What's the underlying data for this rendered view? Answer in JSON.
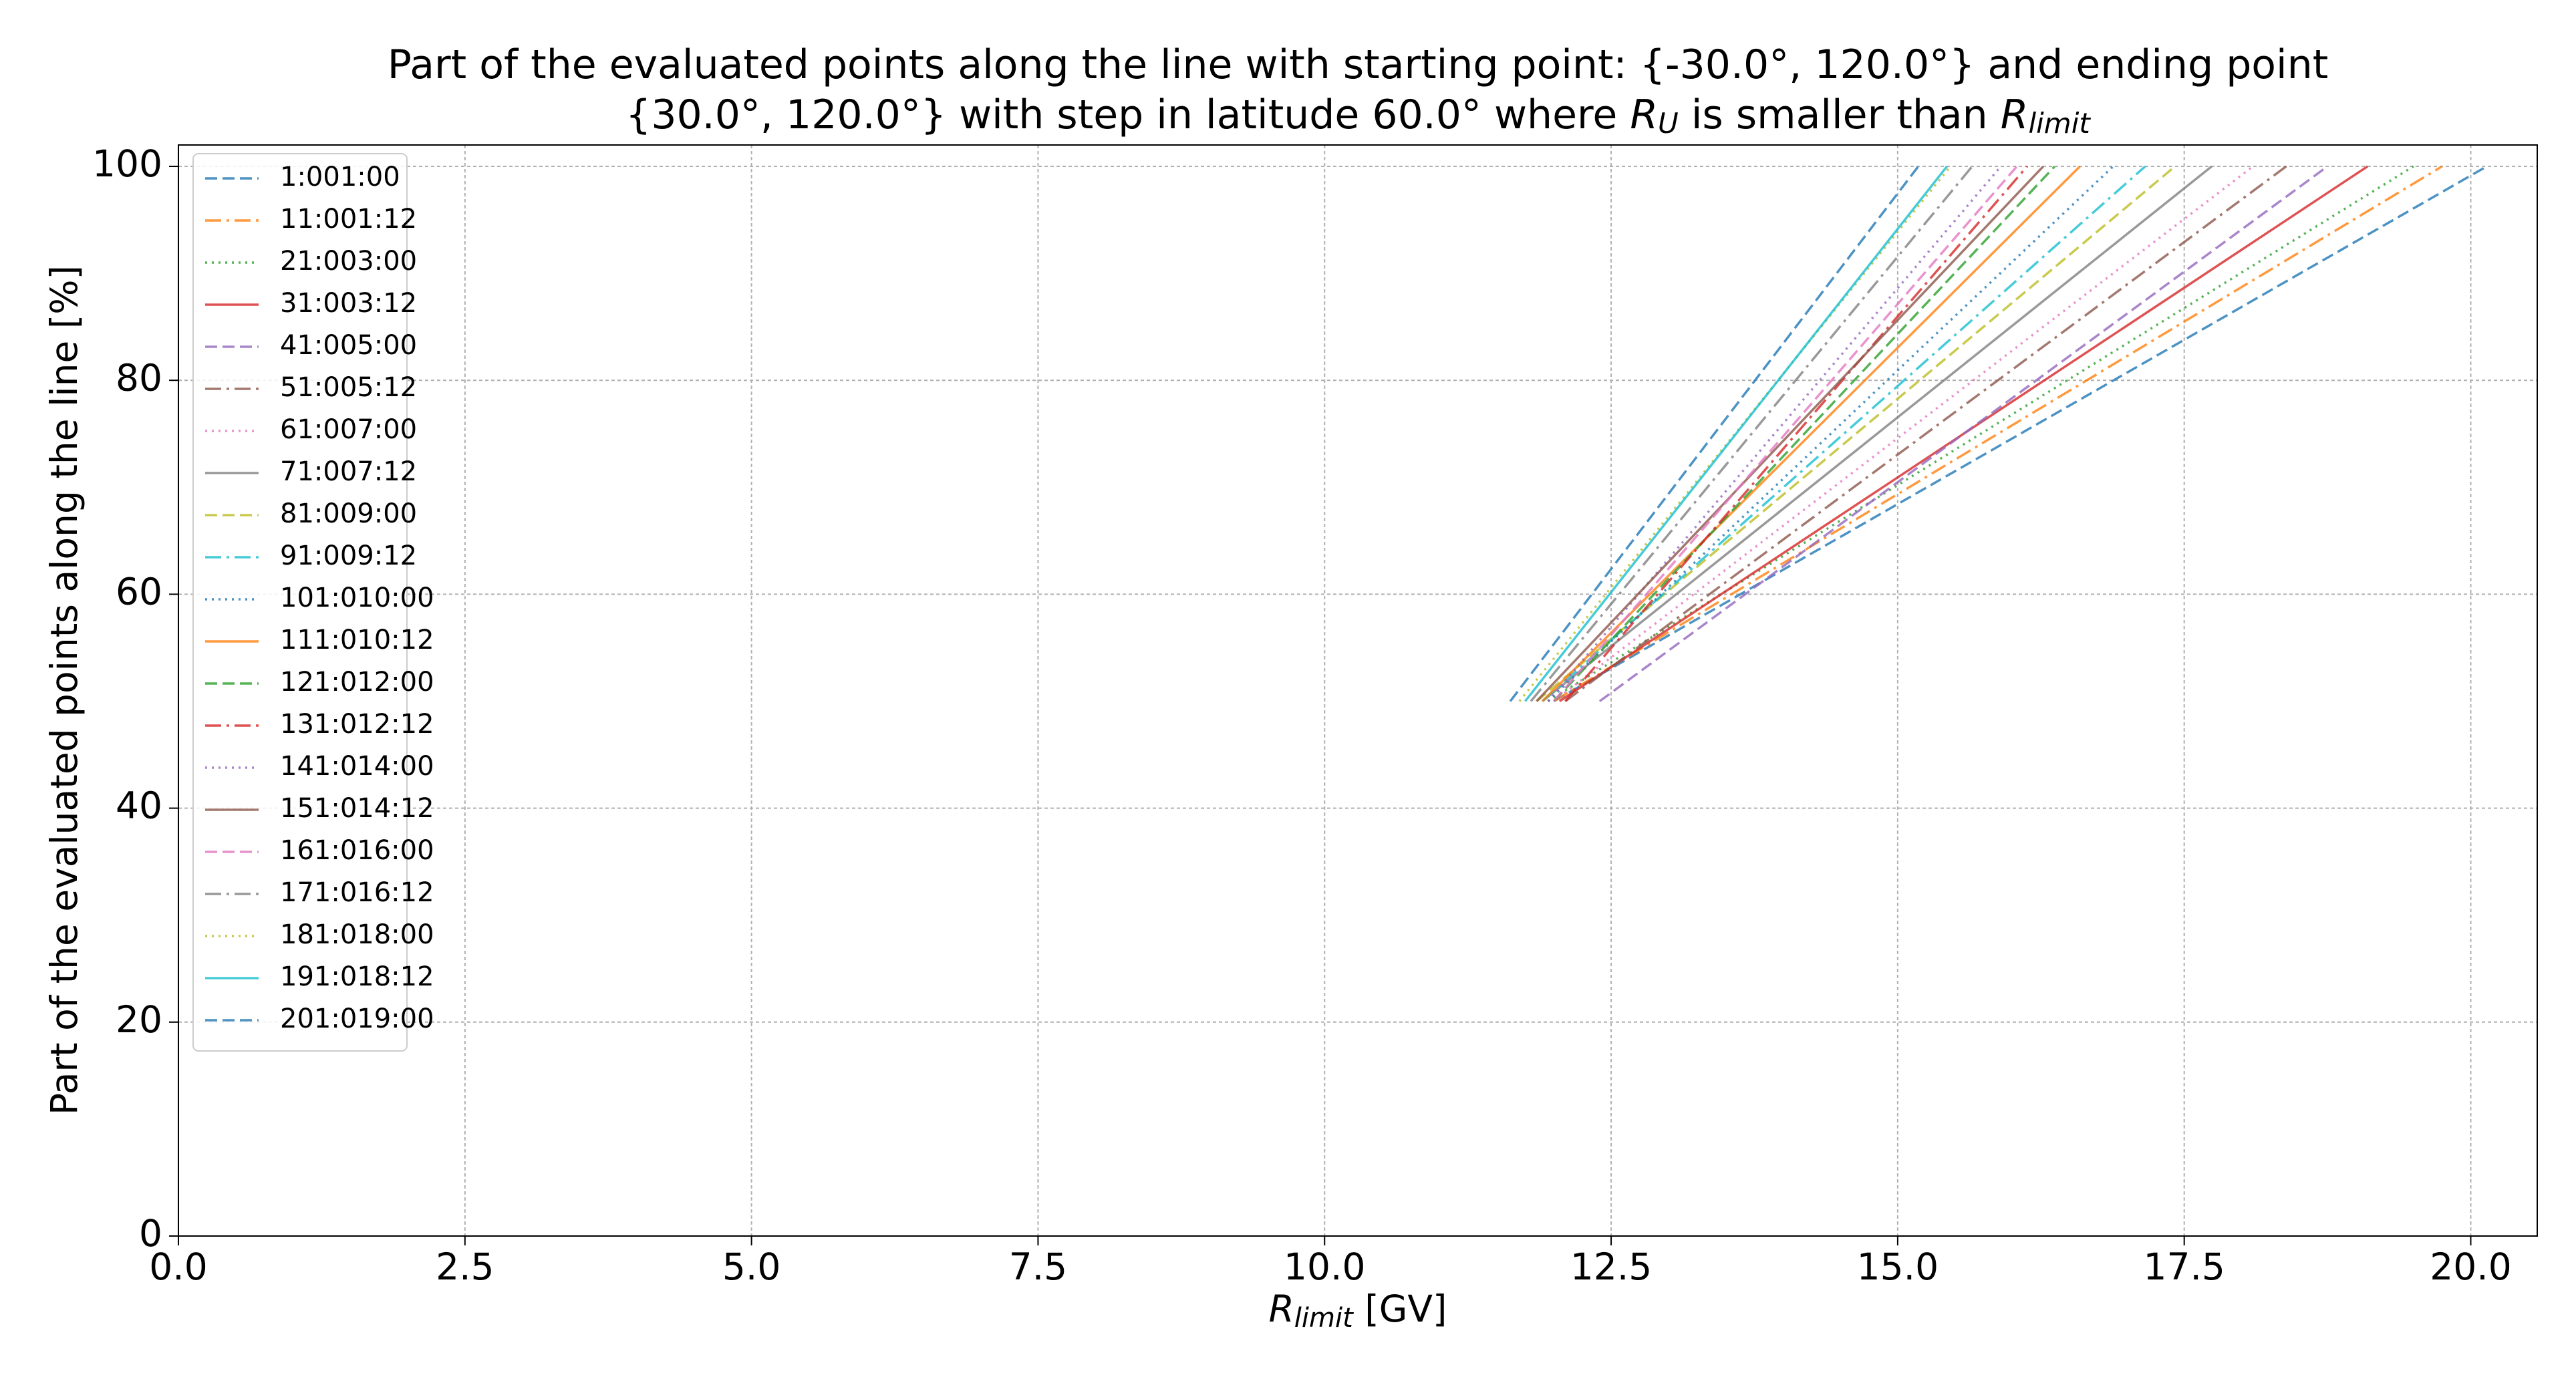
{
  "chart_data": {
    "type": "line",
    "title": [
      [
        "Part of the evaluated points along the line with starting point: {-30.0°, 120.0°} and ending point"
      ],
      [
        "{30.0°, 120.0°} with step in latitude 60.0° where ",
        "R",
        "U",
        " is smaller than ",
        "R",
        "limit"
      ]
    ],
    "xlabel": [
      "R",
      "limit",
      " [GV]"
    ],
    "ylabel": "Part of the evaluated points along the line  [%]",
    "xlim": [
      0,
      20.58
    ],
    "ylim": [
      0,
      102
    ],
    "xticks": [
      {
        "value": 0,
        "label": "0.0"
      },
      2.5,
      {
        "value": 5,
        "label": "5.0"
      },
      7.5,
      {
        "value": 10,
        "label": "10.0"
      },
      12.5,
      {
        "value": 15,
        "label": "15.0"
      },
      17.5,
      {
        "value": 20,
        "label": "20.0"
      }
    ],
    "yticks": [
      0,
      20,
      40,
      60,
      80,
      100
    ],
    "grid": true,
    "legend": "upper left",
    "series": [
      {
        "name": "1:001:00",
        "color": "#1f77b4",
        "linestyle": "dashed",
        "x": [
          12.0,
          20.14
        ],
        "values": [
          50,
          100
        ]
      },
      {
        "name": "11:001:12",
        "color": "#ff7f0e",
        "linestyle": "dashdot",
        "x": [
          12.0,
          19.75
        ],
        "values": [
          50,
          100
        ]
      },
      {
        "name": "21:003:00",
        "color": "#2ca02c",
        "linestyle": "dotted",
        "x": [
          11.95,
          19.5
        ],
        "values": [
          50,
          100
        ]
      },
      {
        "name": "31:003:12",
        "color": "#d62728",
        "linestyle": "solid",
        "x": [
          12.05,
          19.1
        ],
        "values": [
          50,
          100
        ]
      },
      {
        "name": "41:005:00",
        "color": "#9467bd",
        "linestyle": "dashed",
        "x": [
          12.4,
          18.75
        ],
        "values": [
          50,
          100
        ]
      },
      {
        "name": "51:005:12",
        "color": "#8c564b",
        "linestyle": "dashdot",
        "x": [
          12.1,
          18.39
        ],
        "values": [
          50,
          100
        ]
      },
      {
        "name": "61:007:00",
        "color": "#e377c2",
        "linestyle": "dotted",
        "x": [
          12.0,
          18.1
        ],
        "values": [
          50,
          100
        ]
      },
      {
        "name": "71:007:12",
        "color": "#7f7f7f",
        "linestyle": "solid",
        "x": [
          11.9,
          17.74
        ],
        "values": [
          50,
          100
        ]
      },
      {
        "name": "81:009:00",
        "color": "#bcbd22",
        "linestyle": "dashed",
        "x": [
          11.85,
          17.42
        ],
        "values": [
          50,
          100
        ]
      },
      {
        "name": "91:009:12",
        "color": "#17becf",
        "linestyle": "dashdot",
        "x": [
          11.9,
          17.16
        ],
        "values": [
          50,
          100
        ]
      },
      {
        "name": "101:010:00",
        "color": "#1f77b4",
        "linestyle": "dotted",
        "x": [
          11.95,
          16.88
        ],
        "values": [
          50,
          100
        ]
      },
      {
        "name": "111:010:12",
        "color": "#ff7f0e",
        "linestyle": "solid",
        "x": [
          11.9,
          16.59
        ],
        "values": [
          50,
          100
        ]
      },
      {
        "name": "121:012:00",
        "color": "#2ca02c",
        "linestyle": "dashed",
        "x": [
          12.0,
          16.37
        ],
        "values": [
          50,
          100
        ]
      },
      {
        "name": "131:012:12",
        "color": "#d62728",
        "linestyle": "dashdot",
        "x": [
          12.1,
          16.13
        ],
        "values": [
          50,
          100
        ]
      },
      {
        "name": "141:014:00",
        "color": "#9467bd",
        "linestyle": "dotted",
        "x": [
          11.95,
          15.9
        ],
        "values": [
          50,
          100
        ]
      },
      {
        "name": "151:014:12",
        "color": "#8c564b",
        "linestyle": "solid",
        "x": [
          11.85,
          16.27
        ],
        "values": [
          50,
          100
        ]
      },
      {
        "name": "161:016:00",
        "color": "#e377c2",
        "linestyle": "dashed",
        "x": [
          12.0,
          16.04
        ],
        "values": [
          50,
          100
        ]
      },
      {
        "name": "171:016:12",
        "color": "#7f7f7f",
        "linestyle": "dashdot",
        "x": [
          11.8,
          15.65
        ],
        "values": [
          50,
          100
        ]
      },
      {
        "name": "181:018:00",
        "color": "#bcbd22",
        "linestyle": "dotted",
        "x": [
          11.7,
          15.46
        ],
        "values": [
          50,
          100
        ]
      },
      {
        "name": "191:018:12",
        "color": "#17becf",
        "linestyle": "solid",
        "x": [
          11.75,
          15.43
        ],
        "values": [
          50,
          100
        ]
      },
      {
        "name": "201:019:00",
        "color": "#1f77b4",
        "linestyle": "dashed",
        "x": [
          11.62,
          15.18
        ],
        "values": [
          50,
          100
        ]
      }
    ]
  }
}
